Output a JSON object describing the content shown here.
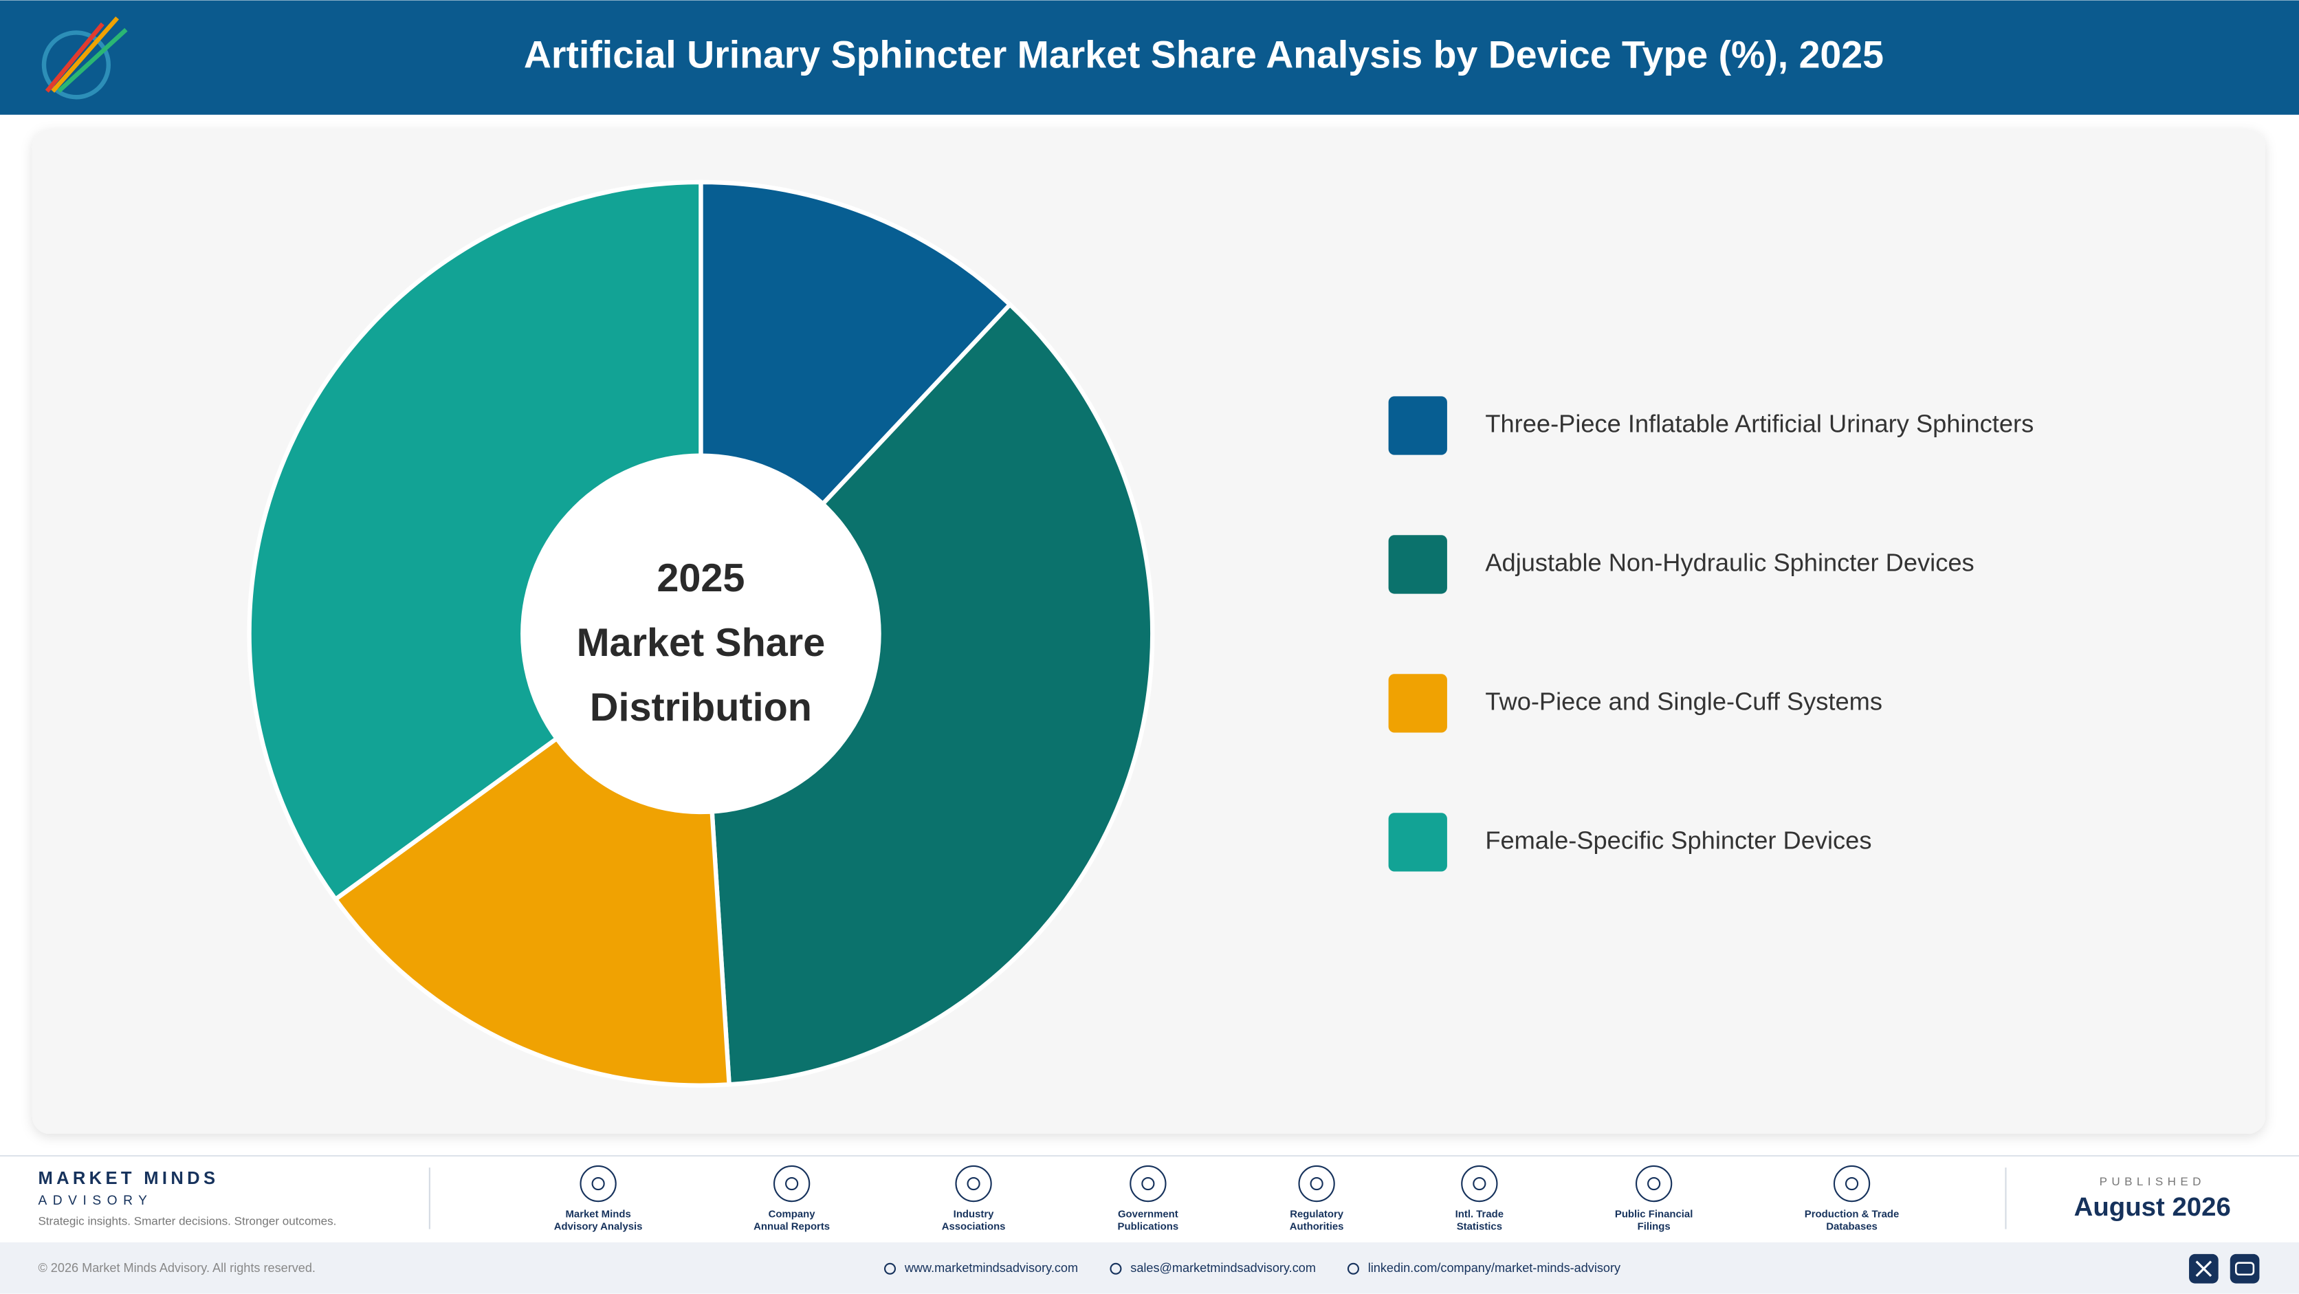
{
  "chart_data": {
    "type": "donut",
    "title": "Artificial Urinary Sphincter Market Share Analysis by Device Type (%), 2025",
    "center_label": [
      "2025",
      "Market Share",
      "Distribution"
    ],
    "categories": [
      "Three-Piece Inflatable Artificial Urinary Sphincters",
      "Adjustable Non-Hydraulic Sphincter Devices",
      "Two-Piece and Single-Cuff Systems",
      "Female-Specific Sphincter Devices"
    ],
    "values": [
      12,
      37,
      16,
      35
    ],
    "colors": [
      "#075e92",
      "#0b726c",
      "#f0a202",
      "#12a395"
    ],
    "legend": "right"
  },
  "footer": {
    "brand": "MARKET MINDS",
    "brand_sub": "ADVISORY",
    "tagline": "Strategic insights. Smarter decisions. Stronger outcomes.",
    "sources": [
      [
        "Market Minds",
        "Advisory Analysis"
      ],
      [
        "Company",
        "Annual Reports"
      ],
      [
        "Industry",
        "Associations"
      ],
      [
        "Government",
        "Publications"
      ],
      [
        "Regulatory",
        "Authorities"
      ],
      [
        "Intl. Trade",
        "Statistics"
      ],
      [
        "Public Financial",
        "Filings"
      ],
      [
        "Production & Trade",
        "Databases"
      ]
    ],
    "published_label": "PUBLISHED",
    "published_date": "August 2026",
    "copyright": "© 2026 Market Minds Advisory. All rights reserved.",
    "links": [
      "www.marketmindsadvisory.com",
      "sales@marketmindsadvisory.com",
      "linkedin.com/company/market-minds-advisory"
    ]
  }
}
